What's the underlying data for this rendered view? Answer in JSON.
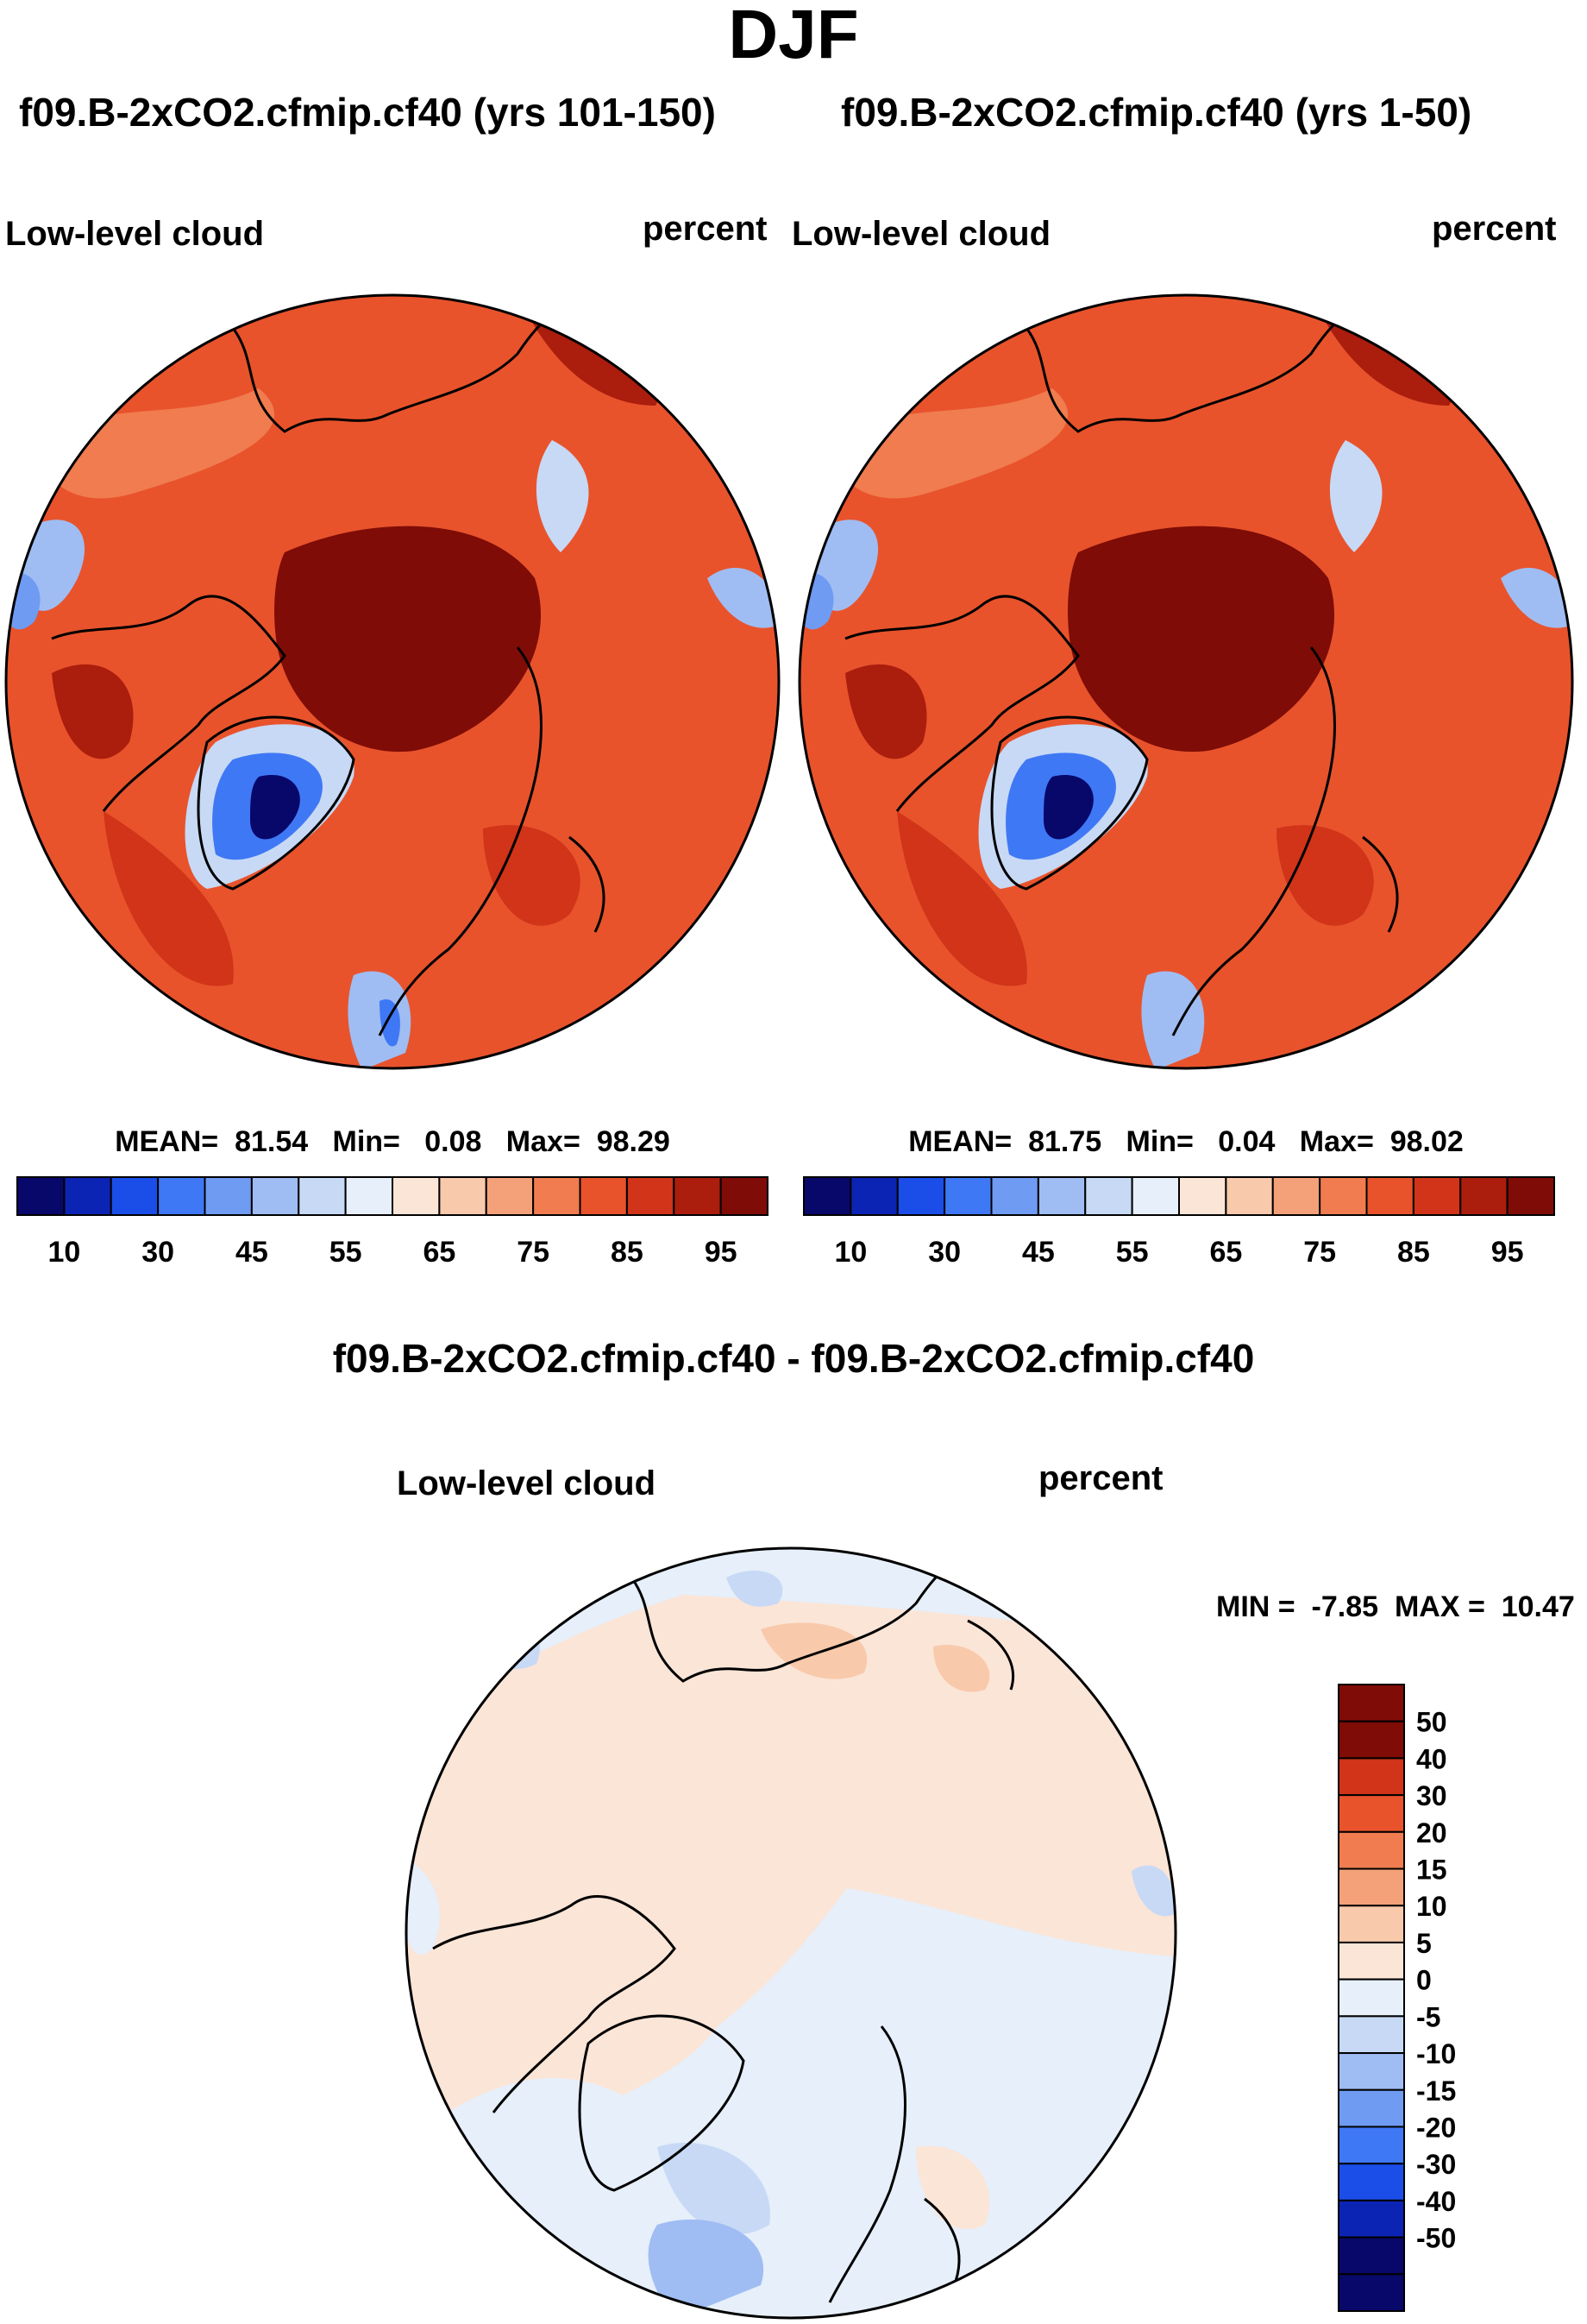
{
  "figure_title": "DJF",
  "colors": {
    "cb_abs": [
      "#08086b",
      "#0b24b4",
      "#1b4ee8",
      "#3f78f5",
      "#6f9bf3",
      "#9fbdf3",
      "#c7d9f5",
      "#e6effa",
      "#fbe5d7",
      "#f8c9ab",
      "#f4a179",
      "#f07c4f",
      "#e8532c",
      "#d13418",
      "#ab1d0d",
      "#7f0c06"
    ],
    "cb_diff": [
      "#08086b",
      "#0b24b4",
      "#1b4ee8",
      "#3f78f5",
      "#6f9bf3",
      "#9fbdf3",
      "#c7d9f5",
      "#e6effa",
      "#fbe5d7",
      "#f8c9ab",
      "#f4a179",
      "#f07c4f",
      "#e8532c",
      "#d13418",
      "#7f0c06"
    ]
  },
  "chart_data": [
    {
      "type": "heatmap",
      "projection": "north polar stereographic",
      "title": "f09.B-2xCO2.cfmip.cf40 (yrs 101-150)",
      "left_label": "Low-level cloud",
      "right_label": "percent",
      "stats": {
        "mean_label": "MEAN=",
        "mean": "81.54",
        "min_label": "Min=",
        "min": "0.08",
        "max_label": "Max=",
        "max": "98.29"
      },
      "stats_values": {
        "mean": 81.54,
        "min": 0.08,
        "max": 98.29
      },
      "colorbar": {
        "orientation": "horizontal",
        "tick_labels": [
          "10",
          "30",
          "45",
          "55",
          "65",
          "75",
          "85",
          "95"
        ]
      }
    },
    {
      "type": "heatmap",
      "projection": "north polar stereographic",
      "title": "f09.B-2xCO2.cfmip.cf40 (yrs 1-50)",
      "left_label": "Low-level cloud",
      "right_label": "percent",
      "stats": {
        "mean_label": "MEAN=",
        "mean": "81.75",
        "min_label": "Min=",
        "min": "0.04",
        "max_label": "Max=",
        "max": "98.02"
      },
      "stats_values": {
        "mean": 81.75,
        "min": 0.04,
        "max": 98.02
      },
      "colorbar": {
        "orientation": "horizontal",
        "tick_labels": [
          "10",
          "30",
          "45",
          "55",
          "65",
          "75",
          "85",
          "95"
        ]
      }
    },
    {
      "type": "heatmap",
      "projection": "north polar stereographic",
      "title": "f09.B-2xCO2.cfmip.cf40 - f09.B-2xCO2.cfmip.cf40",
      "left_label": "Low-level cloud",
      "right_label": "percent",
      "stats": {
        "min_label": "MIN =",
        "min": "-7.85",
        "max_label": "MAX =",
        "max": "10.47"
      },
      "stats_values": {
        "min": -7.85,
        "max": 10.47
      },
      "colorbar": {
        "orientation": "vertical",
        "tick_labels": [
          "50",
          "40",
          "30",
          "20",
          "15",
          "10",
          "5",
          "0",
          "-5",
          "-10",
          "-15",
          "-20",
          "-30",
          "-40",
          "-50"
        ]
      }
    }
  ]
}
